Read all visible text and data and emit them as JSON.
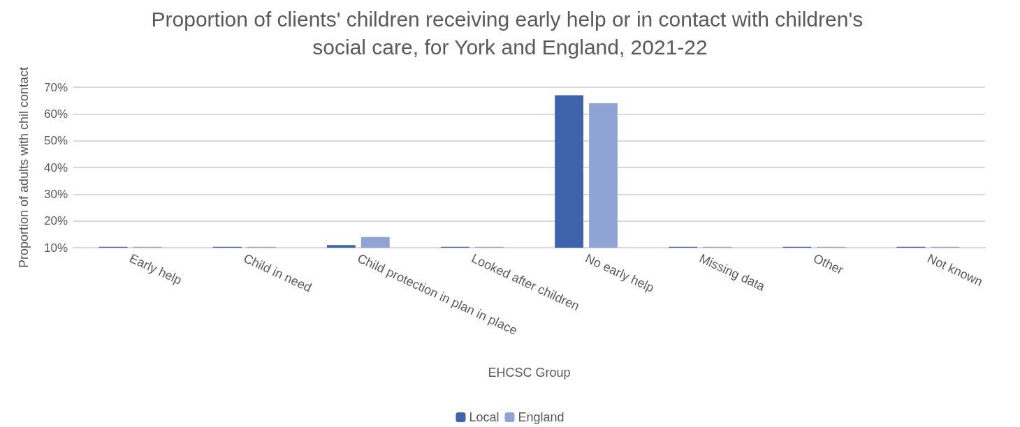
{
  "chart_data": {
    "type": "bar",
    "title": "Proportion of clients' children receiving early help or in contact with children's social care, for York and England, 2021-22",
    "xlabel": "EHCSC Group",
    "ylabel": "Proportion of adults with chil contact",
    "categories": [
      "Early help",
      "Child in need",
      "Child protection in plan in place",
      "Looked after children",
      "No early help",
      "Missing data",
      "Other",
      "Not known"
    ],
    "series": [
      {
        "name": "Local",
        "color": "#3c63ac",
        "values": [
          10.3,
          10.3,
          11,
          10.3,
          67,
          10.3,
          10.3,
          10.3
        ]
      },
      {
        "name": "England",
        "color": "#8fa4d4",
        "values": [
          10.3,
          10.3,
          14,
          10.3,
          64,
          10.3,
          10.3,
          10.3
        ]
      }
    ],
    "ylim": [
      10,
      70
    ],
    "yticks": [
      {
        "value": 10,
        "label": "10%"
      },
      {
        "value": 20,
        "label": "20%"
      },
      {
        "value": 30,
        "label": "30%"
      },
      {
        "value": 40,
        "label": "40%"
      },
      {
        "value": 50,
        "label": "50%"
      },
      {
        "value": 60,
        "label": "60%"
      },
      {
        "value": 70,
        "label": "70%"
      }
    ],
    "grid": "y",
    "legend": "bottom"
  }
}
